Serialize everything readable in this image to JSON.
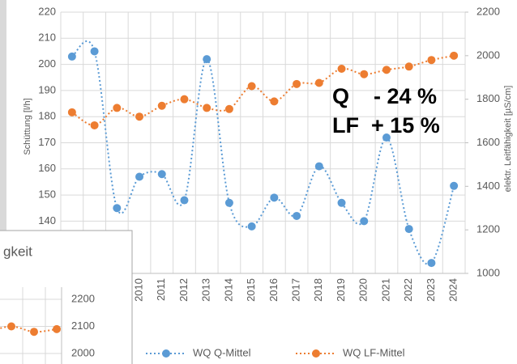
{
  "chart_data": [
    {
      "type": "line",
      "categories": [
        null,
        null,
        null,
        "2010",
        "2011",
        "2012",
        "2013",
        "2014",
        "2015",
        "2016",
        "2017",
        "2018",
        "2019",
        "2020",
        "2021",
        "2022",
        "2023",
        "2024"
      ],
      "ylabel": "Schüttung [l/h]",
      "y2label": "elektr. Leitfähigkeit [µS/cm]",
      "ylim": [
        120,
        220
      ],
      "yticks": [
        140,
        150,
        160,
        170,
        180,
        190,
        200,
        210,
        220
      ],
      "y2lim": [
        1000,
        2200
      ],
      "y2ticks": [
        1000,
        1200,
        1400,
        1600,
        1800,
        2000,
        2200
      ],
      "grid": true,
      "series": [
        {
          "name": "WQ Q-Mittel",
          "color": "#5b9bd5",
          "values": [
            203,
            205,
            145,
            157,
            158,
            148,
            202,
            147,
            138,
            149,
            142,
            161,
            147,
            140,
            172,
            137,
            124,
            153.5
          ]
        },
        {
          "name": "WQ LF-Mittel",
          "color": "#ed7d31",
          "axis": "y2",
          "values": [
            1740,
            1680,
            1760,
            1720,
            1770,
            1800,
            1760,
            1755,
            1860,
            1790,
            1870,
            1875,
            1940,
            1915,
            1935,
            1950,
            1980,
            2000
          ]
        }
      ],
      "annotations": [
        "Q    - 24 %",
        "LF  + 15 %"
      ]
    },
    {
      "type": "line",
      "title": "gkeit",
      "y2lim": [
        2000,
        2200
      ],
      "y2ticks": [
        2000,
        2100,
        2200
      ],
      "series": [
        {
          "color": "#ed7d31",
          "axis": "y2",
          "values": [
            2080,
            2100,
            2080,
            2090
          ]
        }
      ]
    }
  ]
}
